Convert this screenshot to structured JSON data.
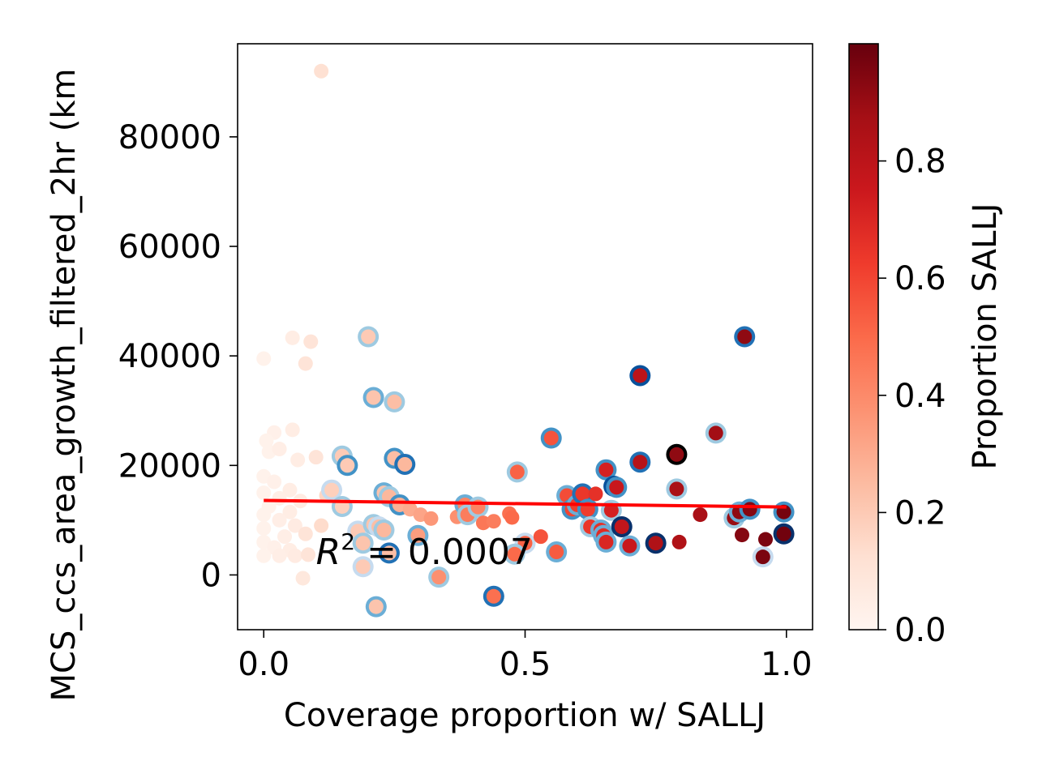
{
  "chart_data": {
    "type": "scatter",
    "title": "",
    "xlabel": "Coverage proportion w/ SALLJ",
    "ylabel": "MCS_ccs_area_growth_filtered_2hr (km",
    "xlim": [
      -0.05,
      1.05
    ],
    "ylim": [
      -10000,
      97000
    ],
    "x_ticks": [
      0.0,
      0.5,
      1.0
    ],
    "x_tick_labels": [
      "0.0",
      "0.5",
      "1.0"
    ],
    "y_ticks": [
      0,
      20000,
      40000,
      60000,
      80000
    ],
    "y_tick_labels": [
      "0",
      "20000",
      "40000",
      "60000",
      "80000"
    ],
    "grid": false,
    "colorbar": {
      "label": "Proportion SALLJ",
      "colormap": "Reds",
      "range": [
        0,
        1
      ],
      "ticks": [
        0.0,
        0.2,
        0.4,
        0.6,
        0.8
      ],
      "tick_labels": [
        "0.0",
        "0.2",
        "0.4",
        "0.6",
        "0.8"
      ]
    },
    "annotation": {
      "r2_value": "0.0007",
      "x": 0.1,
      "y": 2000
    },
    "fit_line": {
      "color": "#ff0000",
      "x": [
        0.0,
        1.0
      ],
      "y": [
        13600,
        12400
      ]
    },
    "series": [
      {
        "points": [
          {
            "x": 0.11,
            "y": 92000,
            "c": 0.12,
            "r": 0
          },
          {
            "x": 0.0,
            "y": 39500,
            "c": 0.02,
            "r": 0
          },
          {
            "x": 0.055,
            "y": 43300,
            "c": 0.05,
            "r": 0
          },
          {
            "x": 0.09,
            "y": 42600,
            "c": 0.1,
            "r": 0
          },
          {
            "x": 0.08,
            "y": 38600,
            "c": 0.1,
            "r": 0
          },
          {
            "x": 0.055,
            "y": 26500,
            "c": 0.05,
            "r": 0
          },
          {
            "x": 0.02,
            "y": 26000,
            "c": 0.03,
            "r": 0
          },
          {
            "x": 0.005,
            "y": 24500,
            "c": 0.02,
            "r": 0
          },
          {
            "x": 0.01,
            "y": 22500,
            "c": 0.02,
            "r": 0
          },
          {
            "x": 0.03,
            "y": 23000,
            "c": 0.04,
            "r": 0
          },
          {
            "x": 0.065,
            "y": 21000,
            "c": 0.05,
            "r": 0
          },
          {
            "x": 0.1,
            "y": 21500,
            "c": 0.1,
            "r": 0
          },
          {
            "x": 0.0,
            "y": 18000,
            "c": 0.02,
            "r": 0
          },
          {
            "x": 0.02,
            "y": 17000,
            "c": 0.03,
            "r": 0
          },
          {
            "x": 0.05,
            "y": 15500,
            "c": 0.05,
            "r": 0
          },
          {
            "x": 0.0,
            "y": 15000,
            "c": 0.02,
            "r": 0
          },
          {
            "x": 0.03,
            "y": 14000,
            "c": 0.04,
            "r": 0
          },
          {
            "x": 0.07,
            "y": 13500,
            "c": 0.06,
            "r": 0
          },
          {
            "x": 0.01,
            "y": 12500,
            "c": 0.02,
            "r": 0
          },
          {
            "x": 0.05,
            "y": 11500,
            "c": 0.05,
            "r": 0
          },
          {
            "x": 0.0,
            "y": 11000,
            "c": 0.02,
            "r": 0
          },
          {
            "x": 0.03,
            "y": 10000,
            "c": 0.04,
            "r": 0
          },
          {
            "x": 0.06,
            "y": 9000,
            "c": 0.06,
            "r": 0
          },
          {
            "x": 0.0,
            "y": 8500,
            "c": 0.02,
            "r": 0
          },
          {
            "x": 0.04,
            "y": 7000,
            "c": 0.04,
            "r": 0
          },
          {
            "x": 0.08,
            "y": 7500,
            "c": 0.1,
            "r": 0
          },
          {
            "x": 0.0,
            "y": 6000,
            "c": 0.02,
            "r": 0
          },
          {
            "x": 0.02,
            "y": 5000,
            "c": 0.03,
            "r": 0
          },
          {
            "x": 0.05,
            "y": 4500,
            "c": 0.05,
            "r": 0
          },
          {
            "x": 0.0,
            "y": 3500,
            "c": 0.02,
            "r": 0
          },
          {
            "x": 0.03,
            "y": 3500,
            "c": 0.04,
            "r": 0
          },
          {
            "x": 0.06,
            "y": 3500,
            "c": 0.06,
            "r": 0
          },
          {
            "x": 0.085,
            "y": 3700,
            "c": 0.1,
            "r": 0
          },
          {
            "x": 0.075,
            "y": -600,
            "c": 0.08,
            "r": 0
          },
          {
            "x": 0.11,
            "y": 9000,
            "c": 0.14,
            "r": 0
          },
          {
            "x": 0.12,
            "y": 14500,
            "c": 0.16,
            "r": 0
          },
          {
            "x": 0.13,
            "y": 15500,
            "c": 0.18,
            "r": 2
          },
          {
            "x": 0.15,
            "y": 21700,
            "c": 0.2,
            "r": 3
          },
          {
            "x": 0.16,
            "y": 20000,
            "c": 0.2,
            "r": 5
          },
          {
            "x": 0.15,
            "y": 12500,
            "c": 0.18,
            "r": 3
          },
          {
            "x": 0.18,
            "y": 8000,
            "c": 0.2,
            "r": 2
          },
          {
            "x": 0.19,
            "y": 5800,
            "c": 0.22,
            "r": 3
          },
          {
            "x": 0.2,
            "y": 43500,
            "c": 0.2,
            "r": 3
          },
          {
            "x": 0.21,
            "y": 32400,
            "c": 0.22,
            "r": 4
          },
          {
            "x": 0.25,
            "y": 31600,
            "c": 0.24,
            "r": 3
          },
          {
            "x": 0.25,
            "y": 21300,
            "c": 0.24,
            "r": 5
          },
          {
            "x": 0.27,
            "y": 20200,
            "c": 0.26,
            "r": 6
          },
          {
            "x": 0.23,
            "y": 15000,
            "c": 0.22,
            "r": 4
          },
          {
            "x": 0.24,
            "y": 14300,
            "c": 0.26,
            "r": 3
          },
          {
            "x": 0.26,
            "y": 12800,
            "c": 0.28,
            "r": 5
          },
          {
            "x": 0.21,
            "y": 9200,
            "c": 0.22,
            "r": 3
          },
          {
            "x": 0.22,
            "y": 8800,
            "c": 0.24,
            "r": 2
          },
          {
            "x": 0.23,
            "y": 8200,
            "c": 0.26,
            "r": 3
          },
          {
            "x": 0.24,
            "y": 4000,
            "c": 0.24,
            "r": 6
          },
          {
            "x": 0.19,
            "y": 1500,
            "c": 0.2,
            "r": 2
          },
          {
            "x": 0.215,
            "y": -5800,
            "c": 0.22,
            "r": 4
          },
          {
            "x": 0.28,
            "y": 12000,
            "c": 0.3,
            "r": 0
          },
          {
            "x": 0.3,
            "y": 11000,
            "c": 0.32,
            "r": 0
          },
          {
            "x": 0.295,
            "y": 7200,
            "c": 0.34,
            "r": 4
          },
          {
            "x": 0.32,
            "y": 10300,
            "c": 0.36,
            "r": 0
          },
          {
            "x": 0.335,
            "y": -400,
            "c": 0.38,
            "r": 3
          },
          {
            "x": 0.37,
            "y": 10600,
            "c": 0.38,
            "r": 0
          },
          {
            "x": 0.385,
            "y": 12800,
            "c": 0.42,
            "r": 4
          },
          {
            "x": 0.39,
            "y": 11000,
            "c": 0.44,
            "r": 3
          },
          {
            "x": 0.41,
            "y": 12400,
            "c": 0.42,
            "r": 3
          },
          {
            "x": 0.42,
            "y": 9500,
            "c": 0.46,
            "r": 0
          },
          {
            "x": 0.44,
            "y": 9800,
            "c": 0.44,
            "r": 0
          },
          {
            "x": 0.47,
            "y": 11200,
            "c": 0.48,
            "r": 0
          },
          {
            "x": 0.475,
            "y": 10500,
            "c": 0.5,
            "r": 0
          },
          {
            "x": 0.44,
            "y": -3900,
            "c": 0.48,
            "r": 6
          },
          {
            "x": 0.485,
            "y": 18800,
            "c": 0.52,
            "r": 3
          },
          {
            "x": 0.5,
            "y": 5800,
            "c": 0.52,
            "r": 2
          },
          {
            "x": 0.48,
            "y": 3800,
            "c": 0.5,
            "r": 3
          },
          {
            "x": 0.53,
            "y": 7000,
            "c": 0.56,
            "r": 0
          },
          {
            "x": 0.55,
            "y": 25000,
            "c": 0.56,
            "r": 5
          },
          {
            "x": 0.56,
            "y": 4200,
            "c": 0.54,
            "r": 4
          },
          {
            "x": 0.58,
            "y": 14500,
            "c": 0.58,
            "r": 4
          },
          {
            "x": 0.59,
            "y": 12000,
            "c": 0.6,
            "r": 5
          },
          {
            "x": 0.6,
            "y": 12800,
            "c": 0.62,
            "r": 4
          },
          {
            "x": 0.61,
            "y": 14800,
            "c": 0.64,
            "r": 6
          },
          {
            "x": 0.62,
            "y": 12000,
            "c": 0.62,
            "r": 5
          },
          {
            "x": 0.625,
            "y": 8800,
            "c": 0.64,
            "r": 3
          },
          {
            "x": 0.635,
            "y": 14800,
            "c": 0.66,
            "r": 0
          },
          {
            "x": 0.645,
            "y": 8200,
            "c": 0.66,
            "r": 4
          },
          {
            "x": 0.65,
            "y": 7200,
            "c": 0.68,
            "r": 4
          },
          {
            "x": 0.655,
            "y": 6000,
            "c": 0.7,
            "r": 4
          },
          {
            "x": 0.655,
            "y": 19200,
            "c": 0.72,
            "r": 5
          },
          {
            "x": 0.665,
            "y": 11800,
            "c": 0.72,
            "r": 3
          },
          {
            "x": 0.67,
            "y": 16200,
            "c": 0.74,
            "r": 7
          },
          {
            "x": 0.675,
            "y": 16000,
            "c": 0.76,
            "r": 5
          },
          {
            "x": 0.685,
            "y": 8800,
            "c": 0.78,
            "r": 8
          },
          {
            "x": 0.7,
            "y": 5300,
            "c": 0.76,
            "r": 4
          },
          {
            "x": 0.72,
            "y": 36400,
            "c": 0.8,
            "r": 7
          },
          {
            "x": 0.72,
            "y": 20600,
            "c": 0.82,
            "r": 6
          },
          {
            "x": 0.75,
            "y": 5800,
            "c": 0.84,
            "r": 8
          },
          {
            "x": 0.79,
            "y": 22000,
            "c": 0.92,
            "r": 9
          },
          {
            "x": 0.79,
            "y": 15700,
            "c": 0.86,
            "r": 3
          },
          {
            "x": 0.795,
            "y": 6000,
            "c": 0.84,
            "r": 0
          },
          {
            "x": 0.835,
            "y": 11000,
            "c": 0.86,
            "r": 0
          },
          {
            "x": 0.865,
            "y": 25900,
            "c": 0.88,
            "r": 3
          },
          {
            "x": 0.9,
            "y": 10400,
            "c": 0.9,
            "r": 3
          },
          {
            "x": 0.91,
            "y": 11500,
            "c": 0.92,
            "r": 4
          },
          {
            "x": 0.915,
            "y": 7300,
            "c": 0.94,
            "r": 0
          },
          {
            "x": 0.92,
            "y": 43500,
            "c": 0.92,
            "r": 6
          },
          {
            "x": 0.93,
            "y": 12000,
            "c": 0.94,
            "r": 5
          },
          {
            "x": 0.955,
            "y": 3300,
            "c": 0.96,
            "r": 2
          },
          {
            "x": 0.96,
            "y": 6500,
            "c": 0.96,
            "r": 0
          },
          {
            "x": 0.995,
            "y": 11500,
            "c": 0.97,
            "r": 5
          },
          {
            "x": 0.995,
            "y": 7500,
            "c": 0.98,
            "r": 8
          }
        ]
      }
    ]
  }
}
